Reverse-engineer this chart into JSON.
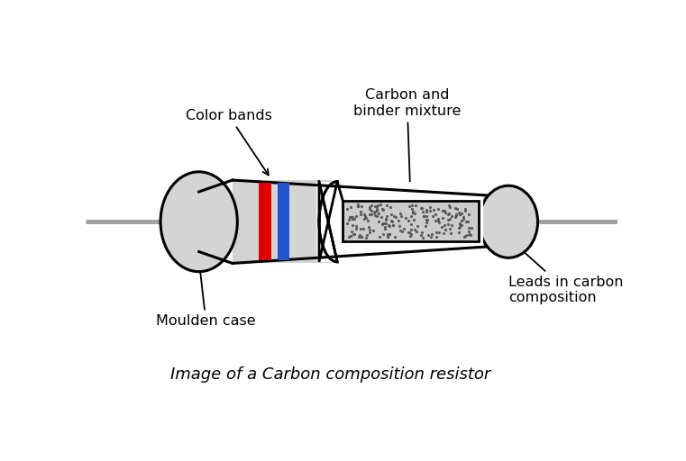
{
  "title": "Image of a Carbon composition resistor",
  "title_fontsize": 13,
  "background_color": "#ffffff",
  "labels": {
    "color_bands": "Color bands",
    "moulden_case": "Moulden case",
    "carbon_binder": "Carbon and\nbinder mixture",
    "leads": "Leads in carbon\ncomposition"
  },
  "colors": {
    "body_fill": "#d4d4d4",
    "body_inner": "#e0e0e0",
    "outline": "#000000",
    "wire": "#a0a0a0",
    "red_band": "#dd0000",
    "blue_band": "#2255cc",
    "carbon_fill": "#cccccc",
    "carbon_dots": "#555555",
    "text": "#000000",
    "white": "#ffffff"
  },
  "font_size": 11.5
}
